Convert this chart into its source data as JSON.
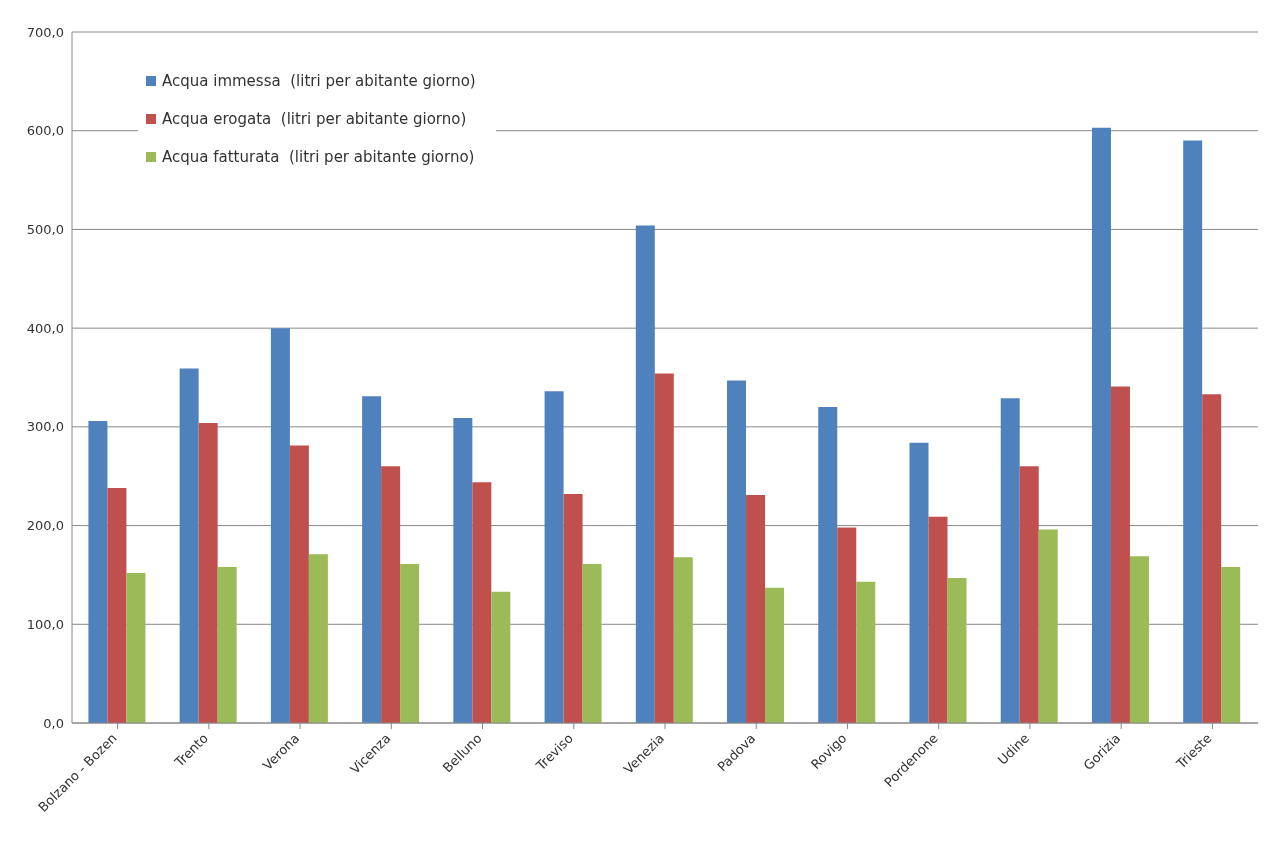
{
  "chart_data": {
    "type": "bar",
    "categories": [
      "Bolzano - Bozen",
      "Trento",
      "Verona",
      "Vicenza",
      "Belluno",
      "Treviso",
      "Venezia",
      "Padova",
      "Rovigo",
      "Pordenone",
      "Udine",
      "Gorizia",
      "Trieste"
    ],
    "series": [
      {
        "name": "Acqua immessa  (litri per abitante giorno)",
        "color": "#4f81bd",
        "values": [
          306,
          359,
          400,
          331,
          309,
          336,
          504,
          347,
          320,
          284,
          329,
          603,
          590
        ]
      },
      {
        "name": "Acqua erogata  (litri per abitante giorno)",
        "color": "#c0504d",
        "values": [
          238,
          304,
          281,
          260,
          244,
          232,
          354,
          231,
          198,
          209,
          260,
          341,
          333
        ]
      },
      {
        "name": "Acqua fatturata  (litri per abitante giorno)",
        "color": "#9bbb59",
        "values": [
          152,
          158,
          171,
          161,
          133,
          161,
          168,
          137,
          143,
          147,
          196,
          169,
          158
        ]
      }
    ],
    "ylim": [
      0,
      700
    ],
    "yticks": [
      {
        "value": 0,
        "label": "0,0"
      },
      {
        "value": 100,
        "label": "100,0"
      },
      {
        "value": 200,
        "label": "200,0"
      },
      {
        "value": 300,
        "label": "300,0"
      },
      {
        "value": 400,
        "label": "400,0"
      },
      {
        "value": 500,
        "label": "500,0"
      },
      {
        "value": 600,
        "label": "600,0"
      },
      {
        "value": 700,
        "label": "700,0"
      }
    ],
    "grid": "y",
    "legend": "top left"
  }
}
